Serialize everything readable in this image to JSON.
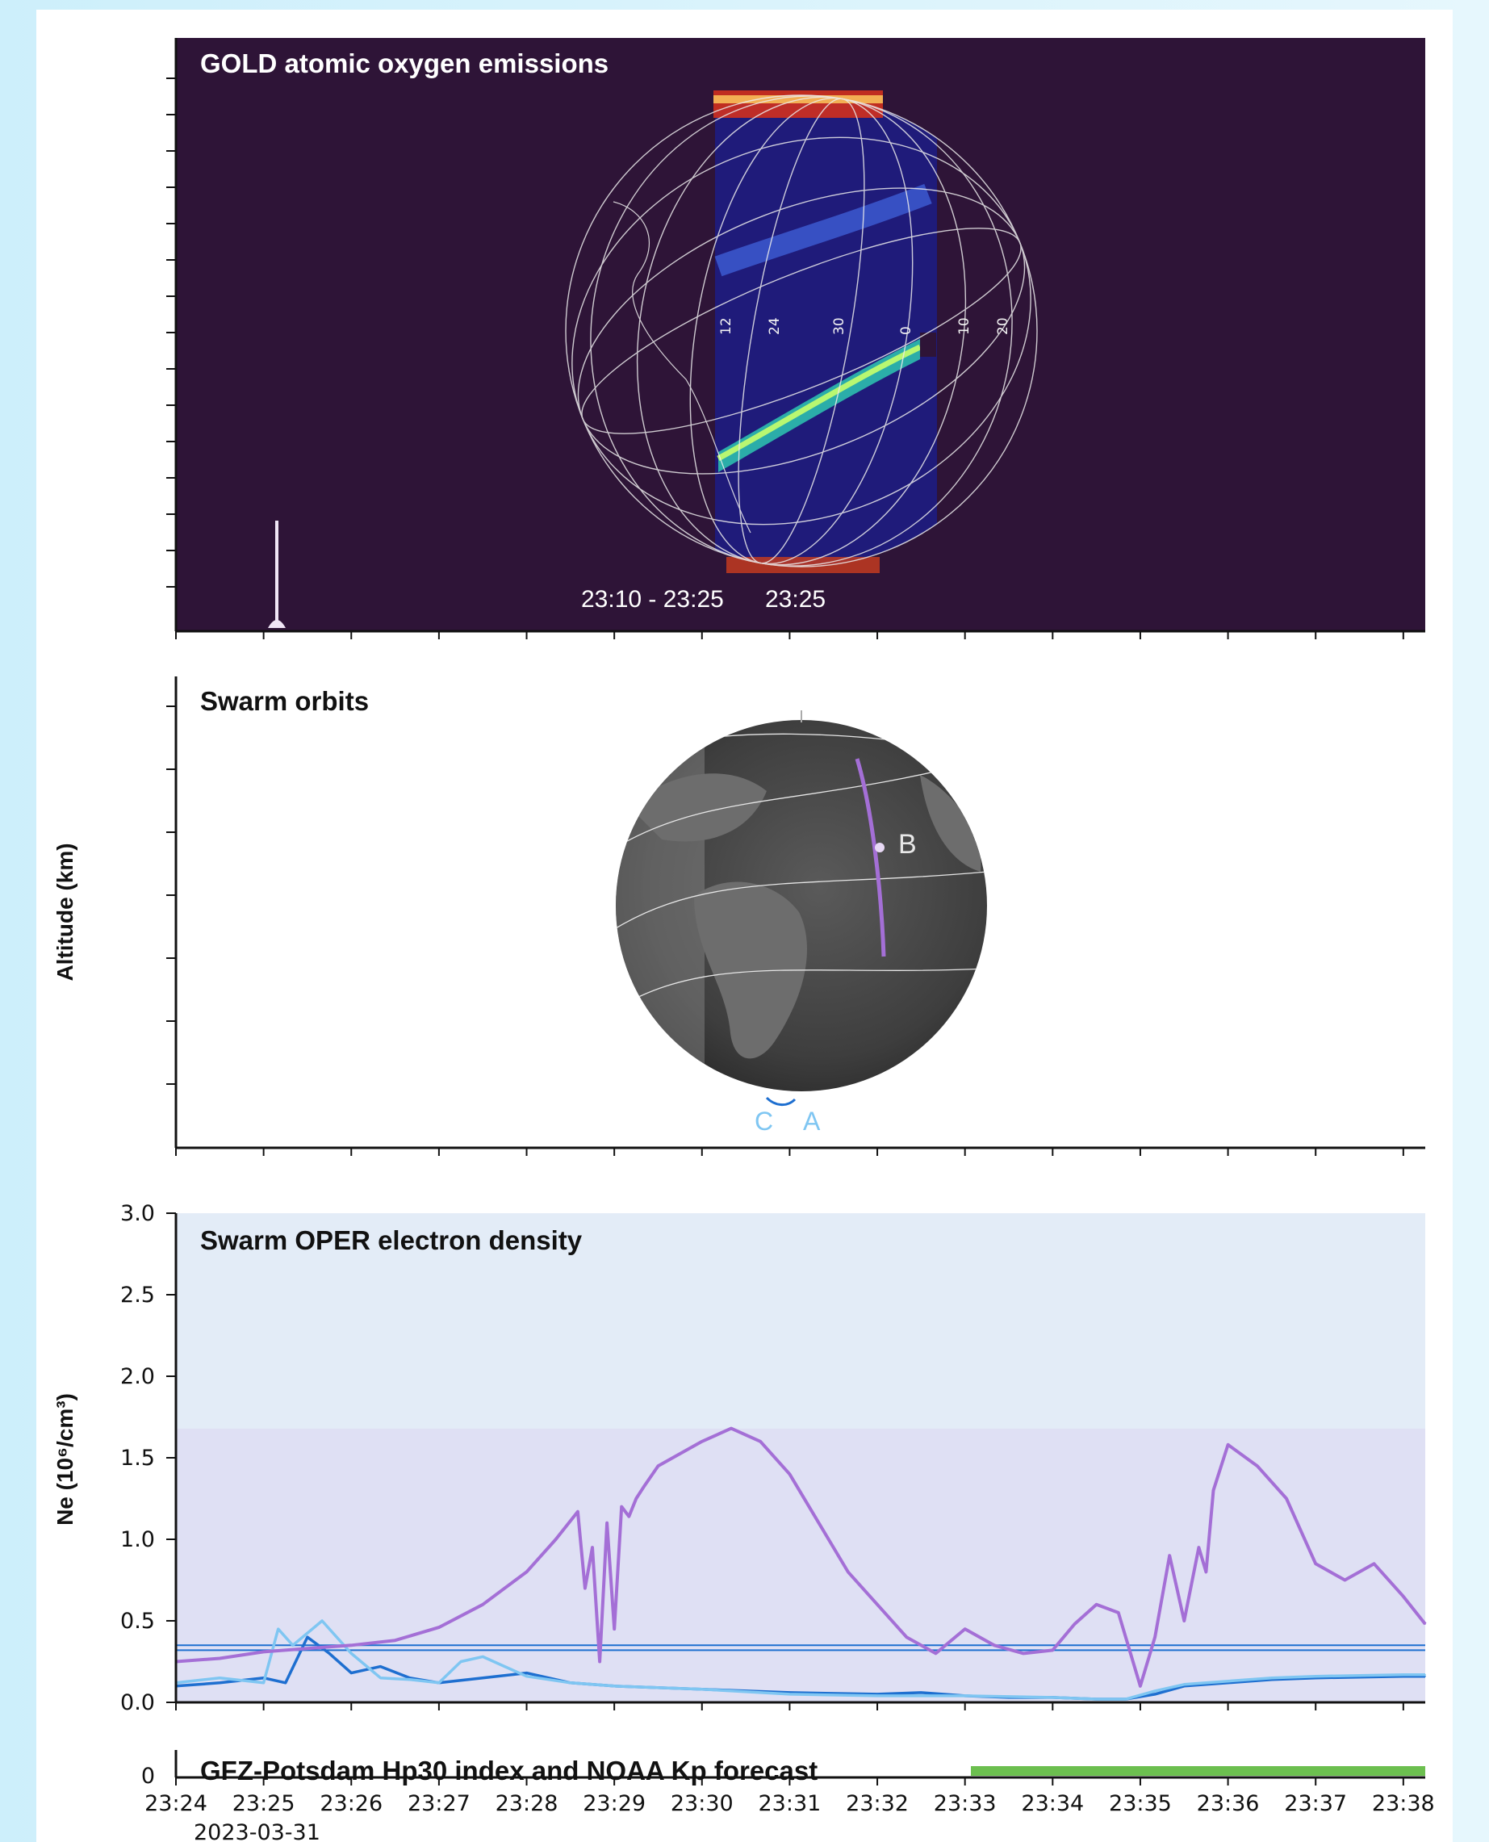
{
  "colors": {
    "page_bg": "#e6f7fd",
    "panel_bg": "#ffffff",
    "gold_bg": "#2e1437",
    "grid_line": "#e9e9f5",
    "swarm_b": "#a46fd6",
    "swarm_a": "#1e6fd0",
    "swarm_c": "#7fc6f2",
    "quiet_band": "#e3ecf7",
    "disturbed_band": "#dfe0f4",
    "hp30_bar": "#6cbf4f"
  },
  "icons": [
    "ground-station-icon"
  ],
  "gold_panel": {
    "title": "GOLD atomic oxygen emissions",
    "time_window": "23:10 - 23:25",
    "scan_time": "23:25",
    "grid_labels": [
      "12",
      "24",
      "30",
      "0",
      "10",
      "20"
    ]
  },
  "orbits_panel": {
    "title": "Swarm orbits",
    "y_axis_label": "Altitude (km)",
    "satellite_labels": {
      "a": "A",
      "b": "B",
      "c": "C"
    }
  },
  "density_panel": {
    "title": "Swarm OPER electron density",
    "y_axis_label": "Ne (10⁶/cm³)",
    "y_ticks": [
      "3.0",
      "2.5",
      "2.0",
      "1.5",
      "1.0",
      "0.5",
      "0.0"
    ]
  },
  "hp30_panel": {
    "title": "GFZ-Potsdam Hp30 index and NOAA Kp forecast",
    "y_tick": "0"
  },
  "x_axis": {
    "ticks": [
      "23:24",
      "23:25",
      "23:26",
      "23:27",
      "23:28",
      "23:29",
      "23:30",
      "23:31",
      "23:32",
      "23:33",
      "23:34",
      "23:35",
      "23:36",
      "23:37",
      "23:38"
    ],
    "date_label": "2023-03-31"
  },
  "chart_data": {
    "type": "line",
    "title": "Swarm OPER electron density",
    "ylabel": "Ne (10⁶/cm³)",
    "ylim": [
      0,
      3.0
    ],
    "xlim": [
      "23:24",
      "23:38:15"
    ],
    "grid": false,
    "bands": [
      {
        "from": 1.68,
        "to": 3.0
      },
      {
        "from": 0.0,
        "to": 1.68
      }
    ],
    "threshold_lines": [
      0.32,
      0.35
    ],
    "series": [
      {
        "name": "B",
        "x": [
          "23:24:00",
          "23:24:30",
          "23:25:00",
          "23:25:30",
          "23:26:00",
          "23:26:30",
          "23:27:00",
          "23:27:30",
          "23:28:00",
          "23:28:20",
          "23:28:35",
          "23:28:40",
          "23:28:45",
          "23:28:50",
          "23:28:55",
          "23:29:00",
          "23:29:05",
          "23:29:10",
          "23:29:15",
          "23:29:20",
          "23:29:30",
          "23:30:00",
          "23:30:20",
          "23:30:40",
          "23:31:00",
          "23:31:20",
          "23:31:40",
          "23:32:00",
          "23:32:20",
          "23:32:40",
          "23:33:00",
          "23:33:20",
          "23:33:40",
          "23:34:00",
          "23:34:15",
          "23:34:30",
          "23:34:45",
          "23:35:00",
          "23:35:10",
          "23:35:20",
          "23:35:30",
          "23:35:40",
          "23:35:45",
          "23:35:50",
          "23:36:00",
          "23:36:20",
          "23:36:40",
          "23:37:00",
          "23:37:20",
          "23:37:40",
          "23:38:00",
          "23:38:15"
        ],
        "values": [
          0.25,
          0.27,
          0.31,
          0.33,
          0.35,
          0.38,
          0.46,
          0.6,
          0.8,
          1.0,
          1.17,
          0.7,
          0.95,
          0.25,
          1.1,
          0.45,
          1.2,
          1.14,
          1.25,
          1.32,
          1.45,
          1.6,
          1.68,
          1.6,
          1.4,
          1.1,
          0.8,
          0.6,
          0.4,
          0.3,
          0.45,
          0.35,
          0.3,
          0.32,
          0.48,
          0.6,
          0.55,
          0.1,
          0.4,
          0.9,
          0.5,
          0.95,
          0.8,
          1.3,
          1.58,
          1.45,
          1.25,
          0.85,
          0.75,
          0.85,
          0.65,
          0.48
        ]
      },
      {
        "name": "A",
        "x": [
          "23:24:00",
          "23:24:30",
          "23:25:00",
          "23:25:15",
          "23:25:30",
          "23:25:45",
          "23:26:00",
          "23:26:20",
          "23:26:40",
          "23:27:00",
          "23:27:30",
          "23:28:00",
          "23:28:30",
          "23:29:00",
          "23:30:00",
          "23:31:00",
          "23:32:00",
          "23:32:30",
          "23:33:00",
          "23:33:30",
          "23:34:00",
          "23:34:30",
          "23:34:50",
          "23:35:10",
          "23:35:30",
          "23:36:00",
          "23:36:30",
          "23:37:00",
          "23:38:00",
          "23:38:15"
        ],
        "values": [
          0.1,
          0.12,
          0.15,
          0.12,
          0.4,
          0.3,
          0.18,
          0.22,
          0.15,
          0.12,
          0.15,
          0.18,
          0.12,
          0.1,
          0.08,
          0.06,
          0.05,
          0.06,
          0.04,
          0.03,
          0.03,
          0.02,
          0.02,
          0.05,
          0.1,
          0.12,
          0.14,
          0.15,
          0.16,
          0.16
        ]
      },
      {
        "name": "C",
        "x": [
          "23:24:00",
          "23:24:30",
          "23:25:00",
          "23:25:10",
          "23:25:20",
          "23:25:40",
          "23:26:00",
          "23:26:20",
          "23:26:40",
          "23:27:00",
          "23:27:15",
          "23:27:30",
          "23:27:45",
          "23:28:00",
          "23:28:30",
          "23:29:00",
          "23:30:00",
          "23:31:00",
          "23:32:00",
          "23:33:00",
          "23:34:00",
          "23:34:30",
          "23:34:50",
          "23:35:10",
          "23:35:30",
          "23:36:00",
          "23:36:30",
          "23:37:00",
          "23:38:00",
          "23:38:15"
        ],
        "values": [
          0.12,
          0.15,
          0.12,
          0.45,
          0.35,
          0.5,
          0.3,
          0.15,
          0.14,
          0.12,
          0.25,
          0.28,
          0.22,
          0.16,
          0.12,
          0.1,
          0.08,
          0.05,
          0.04,
          0.04,
          0.03,
          0.02,
          0.02,
          0.07,
          0.11,
          0.13,
          0.15,
          0.16,
          0.17,
          0.17
        ]
      }
    ]
  }
}
